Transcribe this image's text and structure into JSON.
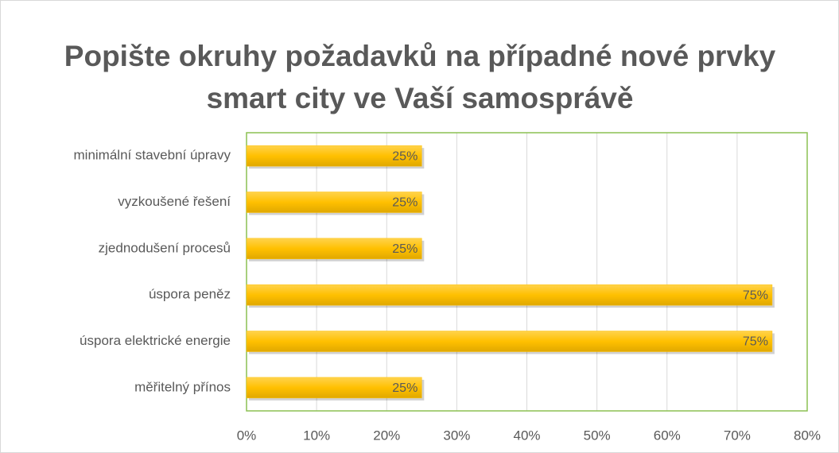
{
  "chart_data": {
    "type": "bar",
    "orientation": "horizontal",
    "title": "Popište okruhy požadavků na případné nové prvky smart city ve Vaší samosprávě",
    "categories": [
      "minimální stavební úpravy",
      "vyzkoušené řešení",
      "zjednodušení procesů",
      "úspora peněz",
      "úspora elektrické energie",
      "měřitelný přínos"
    ],
    "values": [
      25,
      25,
      25,
      75,
      75,
      25
    ],
    "value_labels": [
      "25%",
      "25%",
      "25%",
      "75%",
      "75%",
      "25%"
    ],
    "color": "#ffc000",
    "xlim": [
      0,
      80
    ],
    "xticks": [
      {
        "value": 0,
        "label": "0%"
      },
      {
        "value": 10,
        "label": "10%"
      },
      {
        "value": 20,
        "label": "20%"
      },
      {
        "value": 30,
        "label": "30%"
      },
      {
        "value": 40,
        "label": "40%"
      },
      {
        "value": 50,
        "label": "50%"
      },
      {
        "value": 60,
        "label": "60%"
      },
      {
        "value": 70,
        "label": "70%"
      },
      {
        "value": 80,
        "label": "80%"
      }
    ],
    "grid": true
  }
}
